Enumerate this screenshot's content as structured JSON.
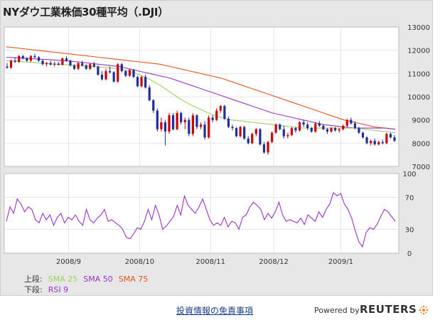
{
  "title": "NYダウ工業株価30種平均（.DJI）",
  "legend": {
    "upper_label": "上段:",
    "lower_label": "下段:",
    "sma25": "SMA 25",
    "sma50": "SMA 50",
    "sma75": "SMA 75",
    "rsi": "RSI 9",
    "colors": {
      "sma25": "#9dd05e",
      "sma50": "#9932cc",
      "sma75": "#e8521c",
      "rsi": "#9932cc"
    }
  },
  "footer": {
    "disclaimer_link": "投資情報の免責事項",
    "powered_by": "Powered by",
    "brand": "REUTERS"
  },
  "chart_data": [
    {
      "type": "candlestick",
      "title": "NYダウ工業株価30種平均（.DJI）",
      "x_ticks": [
        "2008/9",
        "2008/10",
        "2008/11",
        "2008/12",
        "2009/1"
      ],
      "y_ticks": [
        7000,
        8000,
        9000,
        10000,
        11000,
        12000,
        13000
      ],
      "ylim": [
        7000,
        13000
      ],
      "grid": true,
      "colors": {
        "up": "#cc0000",
        "down": "#1c2f9a"
      },
      "candles": [
        [
          11300,
          11450,
          11200,
          11250
        ],
        [
          11250,
          11600,
          11200,
          11550
        ],
        [
          11550,
          11700,
          11450,
          11500
        ],
        [
          11500,
          11800,
          11450,
          11750
        ],
        [
          11750,
          11800,
          11600,
          11650
        ],
        [
          11650,
          11700,
          11500,
          11550
        ],
        [
          11550,
          11800,
          11500,
          11750
        ],
        [
          11750,
          11850,
          11650,
          11700
        ],
        [
          11700,
          11750,
          11500,
          11550
        ],
        [
          11550,
          11600,
          11350,
          11400
        ],
        [
          11400,
          11500,
          11300,
          11450
        ],
        [
          11450,
          11550,
          11350,
          11380
        ],
        [
          11380,
          11500,
          11300,
          11420
        ],
        [
          11420,
          11500,
          11350,
          11370
        ],
        [
          11370,
          11700,
          11350,
          11650
        ],
        [
          11650,
          11750,
          11500,
          11550
        ],
        [
          11550,
          11600,
          11300,
          11350
        ],
        [
          11350,
          11400,
          11150,
          11200
        ],
        [
          11200,
          11500,
          11150,
          11450
        ],
        [
          11450,
          11550,
          11300,
          11350
        ],
        [
          11350,
          11400,
          11150,
          11200
        ],
        [
          11200,
          11450,
          11150,
          11400
        ],
        [
          11400,
          11500,
          11250,
          11300
        ],
        [
          11300,
          11350,
          10900,
          10950
        ],
        [
          10950,
          11100,
          10700,
          10750
        ],
        [
          10750,
          11200,
          10700,
          11100
        ],
        [
          11100,
          11300,
          11000,
          11050
        ],
        [
          11050,
          11100,
          10600,
          10650
        ],
        [
          10650,
          11450,
          10600,
          11400
        ],
        [
          11400,
          11450,
          11050,
          11100
        ],
        [
          11100,
          11150,
          10850,
          10900
        ],
        [
          10900,
          11200,
          10850,
          11150
        ],
        [
          11150,
          11200,
          10800,
          10850
        ],
        [
          10850,
          10900,
          10400,
          10450
        ],
        [
          10450,
          10900,
          10400,
          10850
        ],
        [
          10850,
          10950,
          10350,
          10400
        ],
        [
          10400,
          10500,
          9800,
          9850
        ],
        [
          9850,
          9900,
          9300,
          9400
        ],
        [
          9400,
          9500,
          8500,
          8600
        ],
        [
          8600,
          9100,
          8500,
          8900
        ],
        [
          8900,
          9000,
          7900,
          8500
        ],
        [
          8500,
          9300,
          8400,
          9200
        ],
        [
          9200,
          9300,
          8550,
          8600
        ],
        [
          8600,
          9400,
          8550,
          9300
        ],
        [
          9300,
          9350,
          8800,
          8900
        ],
        [
          8900,
          9100,
          8600,
          9000
        ],
        [
          9000,
          9100,
          8300,
          8400
        ],
        [
          8400,
          9300,
          8300,
          9200
        ],
        [
          9200,
          9250,
          8600,
          8700
        ],
        [
          8700,
          8900,
          8600,
          8800
        ],
        [
          8800,
          8950,
          8150,
          8250
        ],
        [
          8250,
          9200,
          8200,
          9100
        ],
        [
          9100,
          9200,
          8900,
          9000
        ],
        [
          9000,
          9500,
          8950,
          9400
        ],
        [
          9400,
          9650,
          9300,
          9600
        ],
        [
          9600,
          9650,
          9000,
          9050
        ],
        [
          9050,
          9150,
          8650,
          8700
        ],
        [
          8700,
          8800,
          8550,
          8650
        ],
        [
          8650,
          8700,
          8250,
          8300
        ],
        [
          8300,
          8750,
          8250,
          8700
        ],
        [
          8700,
          8750,
          8150,
          8200
        ],
        [
          8200,
          8300,
          7950,
          8000
        ],
        [
          8000,
          8450,
          7950,
          8400
        ],
        [
          8400,
          8650,
          8300,
          8600
        ],
        [
          8600,
          8650,
          7900,
          7950
        ],
        [
          7950,
          8050,
          7550,
          7600
        ],
        [
          7600,
          8100,
          7500,
          8050
        ],
        [
          8050,
          8500,
          8000,
          8450
        ],
        [
          8450,
          8850,
          8400,
          8800
        ],
        [
          8800,
          8850,
          8550,
          8600
        ],
        [
          8600,
          8750,
          8200,
          8300
        ],
        [
          8300,
          8450,
          8200,
          8350
        ],
        [
          8350,
          8700,
          8300,
          8650
        ],
        [
          8650,
          8700,
          8450,
          8550
        ],
        [
          8550,
          8950,
          8500,
          8900
        ],
        [
          8900,
          9000,
          8700,
          8800
        ],
        [
          8800,
          8900,
          8550,
          8650
        ],
        [
          8650,
          8700,
          8450,
          8500
        ],
        [
          8500,
          8900,
          8450,
          8850
        ],
        [
          8850,
          8950,
          8700,
          8750
        ],
        [
          8750,
          8800,
          8550,
          8600
        ],
        [
          8600,
          8650,
          8400,
          8500
        ],
        [
          8500,
          8700,
          8450,
          8650
        ],
        [
          8650,
          8700,
          8500,
          8550
        ],
        [
          8550,
          8650,
          8450,
          8600
        ],
        [
          8600,
          8800,
          8550,
          8750
        ],
        [
          8750,
          9050,
          8700,
          9000
        ],
        [
          9000,
          9100,
          8800,
          8850
        ],
        [
          8850,
          8950,
          8600,
          8650
        ],
        [
          8650,
          8700,
          8400,
          8450
        ],
        [
          8450,
          8500,
          8200,
          8250
        ],
        [
          8250,
          8300,
          7950,
          8000
        ],
        [
          8000,
          8150,
          7900,
          8100
        ],
        [
          8100,
          8200,
          7900,
          7950
        ],
        [
          7950,
          8100,
          7900,
          8050
        ],
        [
          8050,
          8150,
          7950,
          8000
        ],
        [
          8000,
          8450,
          7950,
          8400
        ],
        [
          8400,
          8450,
          8200,
          8250
        ],
        [
          8250,
          8350,
          8050,
          8100
        ]
      ],
      "sma25": [
        11550,
        11520,
        11490,
        11460,
        11430,
        11400,
        11370,
        11340,
        11310,
        11280,
        11250,
        11200,
        11100,
        10950,
        10750,
        10500,
        10200,
        9900,
        9650,
        9450,
        9250,
        9100,
        9000,
        8950,
        8900,
        8850,
        8800,
        8750,
        8700,
        8650,
        8650,
        8650,
        8650,
        8650,
        8650,
        8600,
        8550,
        8500,
        8450
      ],
      "sma50": [
        11700,
        11680,
        11650,
        11620,
        11600,
        11570,
        11540,
        11500,
        11450,
        11400,
        11350,
        11300,
        11200,
        11100,
        11000,
        10900,
        10800,
        10650,
        10500,
        10350,
        10200,
        10050,
        9900,
        9750,
        9600,
        9450,
        9300,
        9200,
        9100,
        9000,
        8900,
        8800,
        8750,
        8700,
        8650,
        8650,
        8650,
        8650,
        8600
      ],
      "sma75": [
        12150,
        12100,
        12050,
        12000,
        11950,
        11900,
        11850,
        11800,
        11750,
        11700,
        11650,
        11600,
        11550,
        11500,
        11450,
        11400,
        11300,
        11200,
        11100,
        11000,
        10900,
        10800,
        10650,
        10500,
        10350,
        10200,
        10050,
        9900,
        9750,
        9600,
        9450,
        9300,
        9150,
        9000,
        8900,
        8800,
        8700,
        8650,
        8600
      ]
    },
    {
      "type": "line",
      "title": "",
      "series": [
        {
          "name": "RSI 9",
          "color": "#9932cc",
          "values": [
            40,
            58,
            50,
            68,
            62,
            52,
            58,
            55,
            42,
            38,
            50,
            42,
            48,
            35,
            45,
            50,
            38,
            45,
            42,
            48,
            40,
            35,
            55,
            42,
            38,
            44,
            48,
            55,
            40,
            42,
            38,
            35,
            30,
            20,
            18,
            24,
            32,
            30,
            40,
            55,
            42,
            60,
            48,
            30,
            34,
            40,
            46,
            60,
            48,
            72,
            60,
            55,
            50,
            58,
            68,
            55,
            42,
            35,
            38,
            35,
            45,
            33,
            40,
            38,
            30,
            45,
            48,
            58,
            64,
            60,
            55,
            42,
            50,
            44,
            52,
            64,
            48,
            40,
            42,
            40,
            38,
            44,
            36,
            48,
            44,
            40,
            52,
            45,
            55,
            62,
            76,
            72,
            75,
            62,
            55,
            44,
            28,
            14,
            8,
            26,
            32,
            30,
            36,
            46,
            55,
            52,
            46,
            40
          ]
        }
      ],
      "y_ticks": [
        0,
        30,
        70,
        100
      ],
      "ylim": [
        0,
        100
      ],
      "grid": true
    }
  ]
}
